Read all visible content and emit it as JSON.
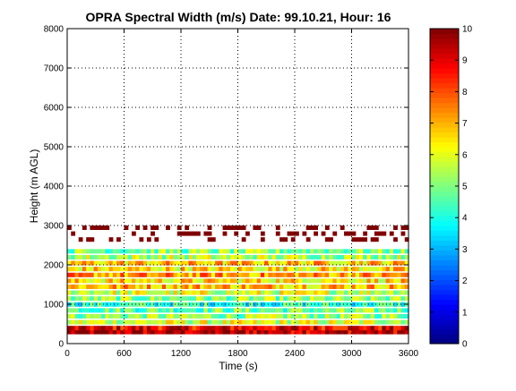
{
  "chart_data": {
    "type": "heatmap",
    "title": "OPRA Spectral Width (m/s)  Date: 99.10.21, Hour: 16",
    "xlabel": "Time (s)",
    "ylabel": "Height (m AGL)",
    "xlim": [
      0,
      3600
    ],
    "ylim": [
      0,
      8000
    ],
    "x_ticks": [
      0,
      600,
      1200,
      1800,
      2400,
      3000,
      3600
    ],
    "y_ticks": [
      0,
      1000,
      2000,
      3000,
      4000,
      5000,
      6000,
      7000,
      8000
    ],
    "grid": true,
    "grid_style": "dotted",
    "colormap": "jet",
    "colorbar": {
      "range": [
        0,
        10
      ],
      "ticks": [
        0,
        1,
        2,
        3,
        4,
        5,
        6,
        7,
        8,
        9,
        10
      ]
    },
    "height_profile": [
      {
        "height": 300,
        "value": 9.5
      },
      {
        "height": 400,
        "value": 9.0
      },
      {
        "height": 550,
        "value": 5.8
      },
      {
        "height": 700,
        "value": 5.2
      },
      {
        "height": 850,
        "value": 4.8
      },
      {
        "height": 1000,
        "value": 4.2
      },
      {
        "height": 1150,
        "value": 5.0
      },
      {
        "height": 1300,
        "value": 5.8
      },
      {
        "height": 1450,
        "value": 7.0
      },
      {
        "height": 1600,
        "value": 6.5
      },
      {
        "height": 1750,
        "value": 7.2
      },
      {
        "height": 1900,
        "value": 6.5
      },
      {
        "height": 2050,
        "value": 6.8
      },
      {
        "height": 2200,
        "value": 5.5
      },
      {
        "height": 2350,
        "value": 5.0
      },
      {
        "height": 2500,
        "value": null
      },
      {
        "height": 2650,
        "value": 10.0
      },
      {
        "height": 2800,
        "value": 10.0
      },
      {
        "height": 2950,
        "value": 10.0
      }
    ],
    "data_extent_note": "Values present mainly from 300 m to 2400 m, sparse dark-red patches 2600-3000 m; no data above 3000 m."
  }
}
